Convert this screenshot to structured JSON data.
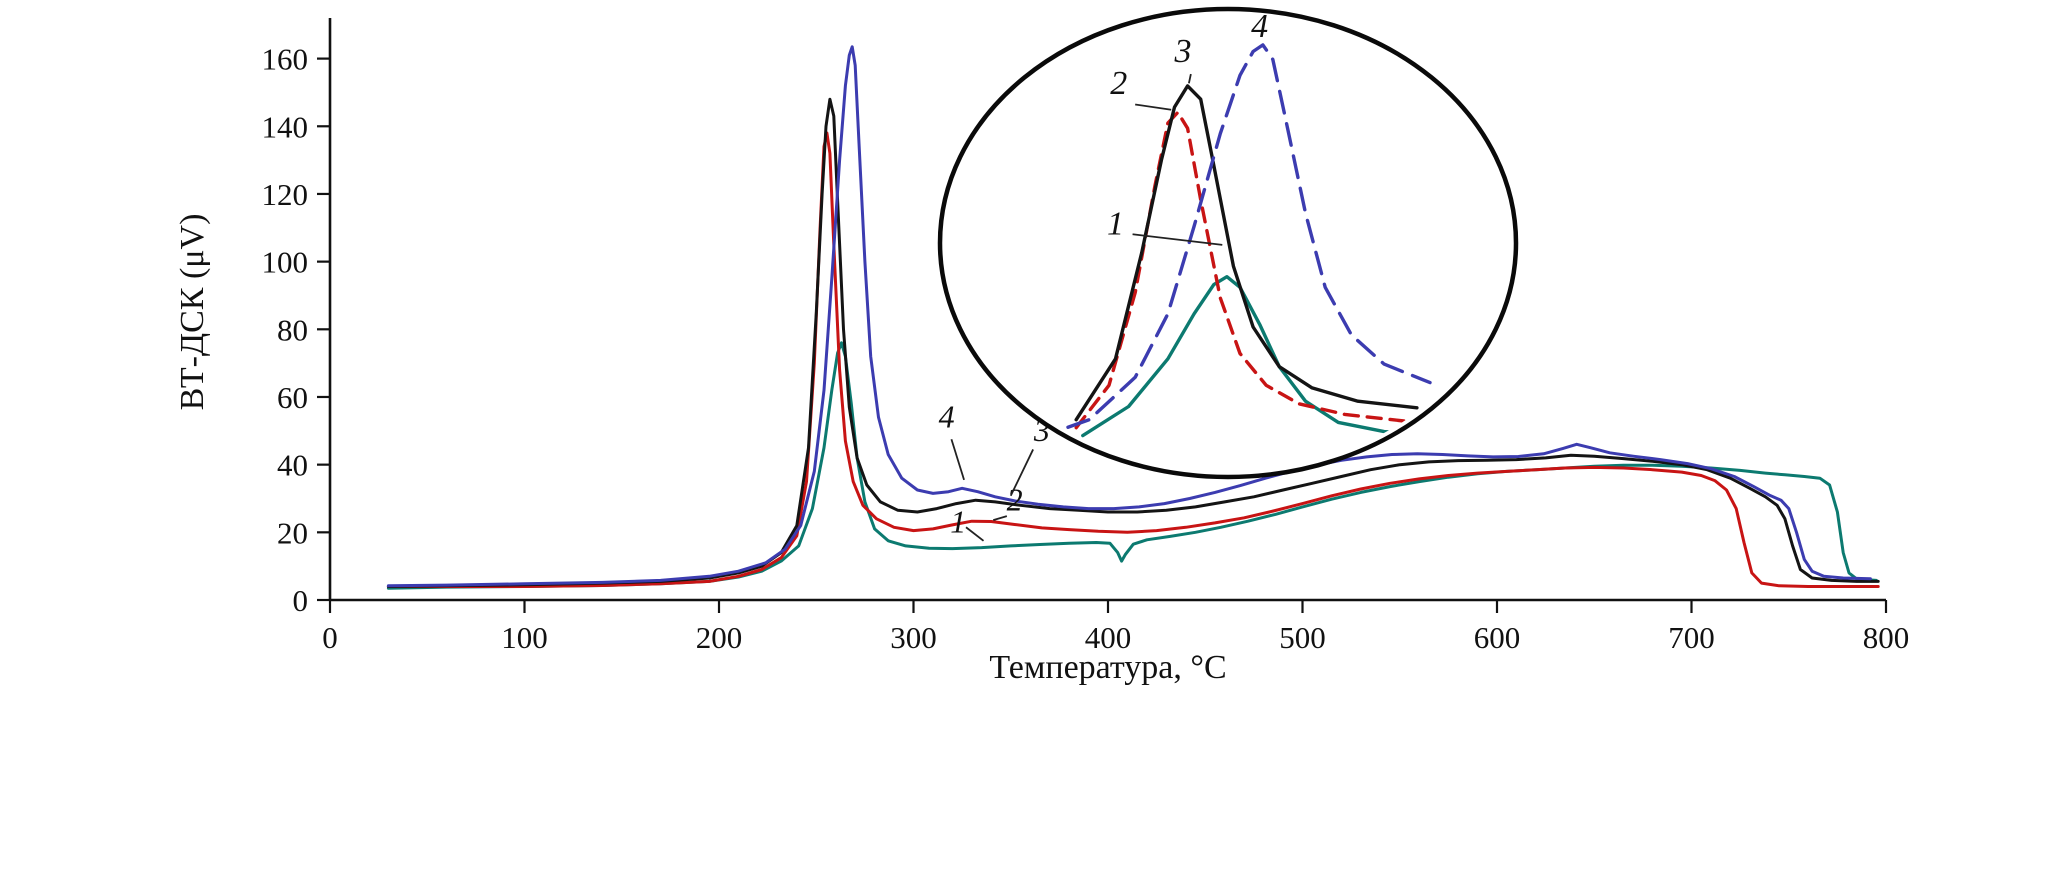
{
  "figure": {
    "background": "#ffffff"
  },
  "axes": {
    "x": {
      "title": "Температура, °C",
      "ticks": [
        0,
        100,
        200,
        300,
        400,
        500,
        600,
        700,
        800
      ]
    },
    "y": {
      "title": "ВТ-ДСК (μV)",
      "ticks": [
        0,
        20,
        40,
        60,
        80,
        100,
        120,
        140,
        160
      ]
    }
  },
  "chart_data": {
    "type": "line",
    "title": "",
    "xlabel": "Температура, °C",
    "ylabel": "ВТ-ДСК (μV)",
    "xlim": [
      0,
      800
    ],
    "ylim": [
      0,
      172
    ],
    "grid": false,
    "series": [
      {
        "name": "1",
        "color": "#0c7a70",
        "points": [
          [
            30,
            3.5
          ],
          [
            60,
            3.8
          ],
          [
            100,
            4
          ],
          [
            140,
            4.3
          ],
          [
            170,
            4.8
          ],
          [
            195,
            5.5
          ],
          [
            210,
            6.8
          ],
          [
            222,
            8.5
          ],
          [
            232,
            11.5
          ],
          [
            241,
            16
          ],
          [
            248,
            27
          ],
          [
            254,
            45
          ],
          [
            258,
            62
          ],
          [
            261,
            73
          ],
          [
            263,
            76
          ],
          [
            265,
            72
          ],
          [
            268,
            58
          ],
          [
            271,
            42
          ],
          [
            275,
            29
          ],
          [
            280,
            21
          ],
          [
            287,
            17.5
          ],
          [
            296,
            16
          ],
          [
            308,
            15.3
          ],
          [
            320,
            15.2
          ],
          [
            335,
            15.5
          ],
          [
            350,
            16
          ],
          [
            365,
            16.4
          ],
          [
            380,
            16.8
          ],
          [
            394,
            17
          ],
          [
            401,
            16.8
          ],
          [
            405,
            14
          ],
          [
            407,
            11.5
          ],
          [
            409,
            13.5
          ],
          [
            413,
            16.5
          ],
          [
            420,
            17.8
          ],
          [
            432,
            18.8
          ],
          [
            445,
            20
          ],
          [
            458,
            21.5
          ],
          [
            472,
            23.3
          ],
          [
            486,
            25.3
          ],
          [
            500,
            27.5
          ],
          [
            515,
            29.8
          ],
          [
            530,
            31.8
          ],
          [
            545,
            33.5
          ],
          [
            560,
            35
          ],
          [
            575,
            36.3
          ],
          [
            590,
            37.3
          ],
          [
            605,
            38
          ],
          [
            620,
            38.5
          ],
          [
            635,
            39
          ],
          [
            650,
            39.5
          ],
          [
            665,
            39.8
          ],
          [
            680,
            39.8
          ],
          [
            695,
            39.5
          ],
          [
            710,
            39
          ],
          [
            725,
            38.3
          ],
          [
            738,
            37.5
          ],
          [
            748,
            37
          ],
          [
            758,
            36.5
          ],
          [
            766,
            36
          ],
          [
            771,
            34
          ],
          [
            775,
            26
          ],
          [
            778,
            14
          ],
          [
            781,
            8
          ],
          [
            785,
            6.2
          ],
          [
            795,
            5.8
          ]
        ]
      },
      {
        "name": "2",
        "color": "#c81414",
        "points": [
          [
            30,
            4
          ],
          [
            60,
            4
          ],
          [
            100,
            4
          ],
          [
            140,
            4.3
          ],
          [
            170,
            4.8
          ],
          [
            195,
            5.5
          ],
          [
            210,
            7
          ],
          [
            222,
            9
          ],
          [
            232,
            12.5
          ],
          [
            240,
            19
          ],
          [
            245,
            35
          ],
          [
            249,
            70
          ],
          [
            252,
            110
          ],
          [
            254,
            134
          ],
          [
            255.5,
            138
          ],
          [
            257,
            132
          ],
          [
            259,
            105
          ],
          [
            262,
            68
          ],
          [
            265,
            47
          ],
          [
            269,
            35
          ],
          [
            274,
            28
          ],
          [
            281,
            24
          ],
          [
            290,
            21.5
          ],
          [
            300,
            20.5
          ],
          [
            310,
            21
          ],
          [
            320,
            22.2
          ],
          [
            330,
            23.3
          ],
          [
            340,
            23.2
          ],
          [
            352,
            22.3
          ],
          [
            366,
            21.3
          ],
          [
            380,
            20.8
          ],
          [
            395,
            20.3
          ],
          [
            410,
            20
          ],
          [
            425,
            20.5
          ],
          [
            440,
            21.5
          ],
          [
            455,
            22.8
          ],
          [
            470,
            24.3
          ],
          [
            485,
            26.3
          ],
          [
            500,
            28.5
          ],
          [
            515,
            30.8
          ],
          [
            530,
            32.8
          ],
          [
            545,
            34.5
          ],
          [
            560,
            35.8
          ],
          [
            575,
            36.8
          ],
          [
            590,
            37.5
          ],
          [
            605,
            38
          ],
          [
            620,
            38.5
          ],
          [
            635,
            39
          ],
          [
            650,
            39.2
          ],
          [
            665,
            39
          ],
          [
            680,
            38.5
          ],
          [
            695,
            37.8
          ],
          [
            705,
            36.8
          ],
          [
            712,
            35.3
          ],
          [
            718,
            32.5
          ],
          [
            723,
            27
          ],
          [
            727,
            17
          ],
          [
            731,
            8
          ],
          [
            736,
            5
          ],
          [
            745,
            4.2
          ],
          [
            760,
            4
          ],
          [
            780,
            4
          ],
          [
            796,
            4
          ]
        ]
      },
      {
        "name": "3",
        "color": "#141414",
        "points": [
          [
            30,
            4
          ],
          [
            60,
            4.2
          ],
          [
            100,
            4.5
          ],
          [
            140,
            5
          ],
          [
            170,
            5.5
          ],
          [
            195,
            6.5
          ],
          [
            210,
            8
          ],
          [
            222,
            10
          ],
          [
            232,
            14
          ],
          [
            240,
            22
          ],
          [
            246,
            45
          ],
          [
            250,
            85
          ],
          [
            253,
            120
          ],
          [
            255,
            140
          ],
          [
            257,
            148
          ],
          [
            259,
            143
          ],
          [
            261,
            118
          ],
          [
            264,
            80
          ],
          [
            267,
            57
          ],
          [
            271,
            42
          ],
          [
            276,
            34
          ],
          [
            283,
            29
          ],
          [
            292,
            26.5
          ],
          [
            302,
            26
          ],
          [
            312,
            27
          ],
          [
            322,
            28.5
          ],
          [
            332,
            29.5
          ],
          [
            342,
            29
          ],
          [
            355,
            28
          ],
          [
            370,
            27
          ],
          [
            385,
            26.5
          ],
          [
            400,
            26
          ],
          [
            415,
            26
          ],
          [
            430,
            26.5
          ],
          [
            445,
            27.5
          ],
          [
            460,
            29
          ],
          [
            475,
            30.5
          ],
          [
            490,
            32.5
          ],
          [
            505,
            34.5
          ],
          [
            520,
            36.5
          ],
          [
            535,
            38.5
          ],
          [
            550,
            40
          ],
          [
            565,
            40.8
          ],
          [
            580,
            41.2
          ],
          [
            595,
            41.3
          ],
          [
            610,
            41.5
          ],
          [
            625,
            42
          ],
          [
            638,
            42.8
          ],
          [
            650,
            42.5
          ],
          [
            665,
            41.8
          ],
          [
            680,
            41
          ],
          [
            695,
            40
          ],
          [
            708,
            38.5
          ],
          [
            720,
            36
          ],
          [
            730,
            33
          ],
          [
            738,
            30.5
          ],
          [
            744,
            28
          ],
          [
            748,
            24
          ],
          [
            752,
            16
          ],
          [
            756,
            9
          ],
          [
            762,
            6.5
          ],
          [
            772,
            5.8
          ],
          [
            785,
            5.5
          ],
          [
            796,
            5.5
          ]
        ]
      },
      {
        "name": "4",
        "color": "#3c3cb0",
        "points": [
          [
            30,
            4.2
          ],
          [
            60,
            4.4
          ],
          [
            100,
            4.8
          ],
          [
            140,
            5.2
          ],
          [
            170,
            5.8
          ],
          [
            195,
            7
          ],
          [
            210,
            8.5
          ],
          [
            224,
            11
          ],
          [
            234,
            15
          ],
          [
            242,
            22
          ],
          [
            249,
            38
          ],
          [
            254,
            62
          ],
          [
            258,
            95
          ],
          [
            262,
            130
          ],
          [
            265,
            152
          ],
          [
            267,
            161
          ],
          [
            268.5,
            163.5
          ],
          [
            270,
            158
          ],
          [
            272,
            135
          ],
          [
            275,
            100
          ],
          [
            278,
            72
          ],
          [
            282,
            54
          ],
          [
            287,
            43
          ],
          [
            294,
            36
          ],
          [
            302,
            32.5
          ],
          [
            310,
            31.5
          ],
          [
            318,
            32
          ],
          [
            325,
            33
          ],
          [
            333,
            32
          ],
          [
            342,
            30.5
          ],
          [
            352,
            29.3
          ],
          [
            364,
            28.3
          ],
          [
            377,
            27.5
          ],
          [
            390,
            27
          ],
          [
            403,
            27
          ],
          [
            416,
            27.5
          ],
          [
            429,
            28.5
          ],
          [
            442,
            30
          ],
          [
            455,
            31.8
          ],
          [
            468,
            33.8
          ],
          [
            481,
            36
          ],
          [
            494,
            38
          ],
          [
            507,
            39.8
          ],
          [
            520,
            41.3
          ],
          [
            533,
            42.3
          ],
          [
            546,
            43
          ],
          [
            559,
            43.2
          ],
          [
            572,
            43
          ],
          [
            585,
            42.6
          ],
          [
            598,
            42.3
          ],
          [
            611,
            42.4
          ],
          [
            624,
            43.2
          ],
          [
            634,
            44.8
          ],
          [
            641,
            46
          ],
          [
            648,
            45
          ],
          [
            658,
            43.5
          ],
          [
            670,
            42.5
          ],
          [
            684,
            41.5
          ],
          [
            698,
            40.3
          ],
          [
            710,
            38.8
          ],
          [
            722,
            36.5
          ],
          [
            732,
            33.5
          ],
          [
            740,
            31
          ],
          [
            746,
            29.5
          ],
          [
            750,
            27
          ],
          [
            754,
            20
          ],
          [
            758,
            12
          ],
          [
            762,
            8.5
          ],
          [
            768,
            7
          ],
          [
            778,
            6.5
          ],
          [
            792,
            6.3
          ]
        ]
      }
    ],
    "annotations": [
      {
        "text": "1",
        "x": 323,
        "y": 20,
        "leader": [
          327,
          21.5,
          336,
          17.5
        ]
      },
      {
        "text": "2",
        "x": 352,
        "y": 26.5,
        "leader": [
          348,
          24.8,
          341,
          23.6
        ]
      },
      {
        "text": "3",
        "x": 366,
        "y": 47,
        "leader": [
          361.5,
          44.5,
          350,
          30.8
        ]
      },
      {
        "text": "4",
        "x": 317,
        "y": 51,
        "leader": [
          319.5,
          47.5,
          326,
          35.5
        ]
      }
    ],
    "inset": {
      "shape": "ellipse",
      "x_range": [
        236,
        294
      ],
      "v_range": [
        0,
        171
      ],
      "dash": {
        "2": "14 9",
        "4": "22 11"
      },
      "labels": [
        {
          "text": "1",
          "x": 246,
          "v": 92,
          "leader": [
            248.6,
            92,
            262.3,
            88
          ]
        },
        {
          "text": "2",
          "x": 246.5,
          "v": 145,
          "leader": [
            249,
            141,
            254.5,
            139
          ]
        },
        {
          "text": "3",
          "x": 256.3,
          "v": 157,
          "leader": [
            257.5,
            152.5,
            257.2,
            149
          ]
        },
        {
          "text": "4",
          "x": 268,
          "v": 166.5
        }
      ]
    }
  }
}
